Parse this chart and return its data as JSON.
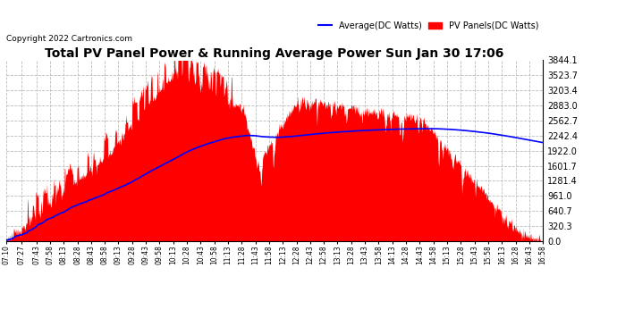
{
  "title": "Total PV Panel Power & Running Average Power Sun Jan 30 17:06",
  "copyright": "Copyright 2022 Cartronics.com",
  "legend_avg": "Average(DC Watts)",
  "legend_pv": "PV Panels(DC Watts)",
  "ymax": 3844.1,
  "ymin": 0.0,
  "yticks": [
    0.0,
    320.3,
    640.7,
    961.0,
    1281.4,
    1601.7,
    1922.0,
    2242.4,
    2562.7,
    2883.0,
    3203.4,
    3523.7,
    3844.1
  ],
  "bg_color": "#ffffff",
  "fill_color": "#ff0000",
  "avg_color": "#0000ff",
  "grid_color": "#bbbbbb",
  "title_color": "#000000",
  "copyright_color": "#000000",
  "legend_avg_color": "#0000ff",
  "legend_pv_color": "#ff0000",
  "time_labels": [
    "07:10",
    "07:27",
    "07:43",
    "07:58",
    "08:13",
    "08:28",
    "08:43",
    "08:58",
    "09:13",
    "09:28",
    "09:43",
    "09:58",
    "10:13",
    "10:28",
    "10:43",
    "10:58",
    "11:13",
    "11:28",
    "11:43",
    "11:58",
    "12:13",
    "12:28",
    "12:43",
    "12:58",
    "13:13",
    "13:28",
    "13:43",
    "13:58",
    "14:13",
    "14:28",
    "14:43",
    "14:58",
    "15:13",
    "15:28",
    "15:43",
    "15:58",
    "16:13",
    "16:28",
    "16:43",
    "16:58"
  ]
}
